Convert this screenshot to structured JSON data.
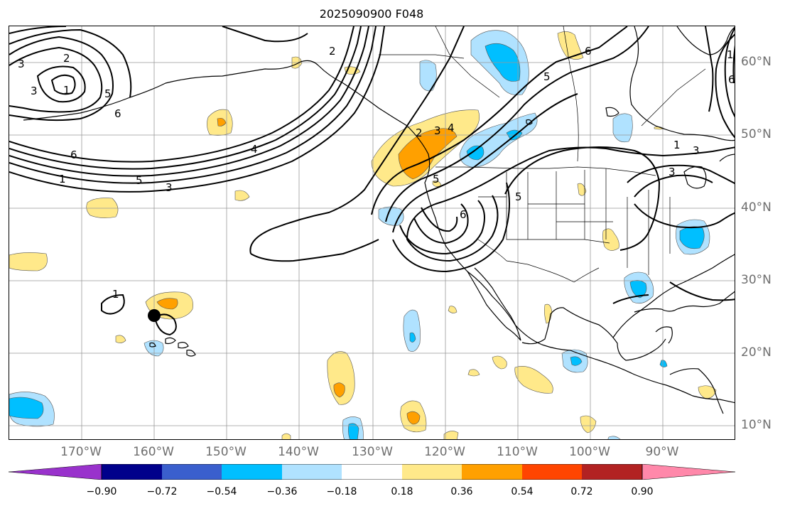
{
  "title": "2025090900 F048",
  "lon_labels": [
    "170°W",
    "160°W",
    "150°W",
    "140°W",
    "130°W",
    "120°W",
    "110°W",
    "100°W",
    "90°W"
  ],
  "lat_labels": [
    "60°N",
    "50°N",
    "40°N",
    "30°N",
    "20°N",
    "10°N"
  ],
  "colorbar": {
    "colors": [
      "#9932cc",
      "#00008b",
      "#3a5fcd",
      "#00bfff",
      "#b0e2ff",
      "#ffffff",
      "#ffe98a",
      "#ffa000",
      "#ff4500",
      "#b22222",
      "#ff88aa"
    ],
    "tick_labels": [
      "−0.90",
      "−0.72",
      "−0.54",
      "−0.36",
      "−0.18",
      "0.18",
      "0.36",
      "0.54",
      "0.72",
      "0.90"
    ]
  },
  "contour_labels": [
    "2",
    "3",
    "1",
    "5",
    "6",
    "6",
    "1",
    "5",
    "3",
    "4",
    "2",
    "2",
    "5",
    "3",
    "4",
    "5",
    "6",
    "5",
    "6",
    "1",
    "3",
    "6",
    "3",
    "1",
    "3",
    "1"
  ],
  "colors": {
    "coast": "#000000",
    "grid": "#999999",
    "contour": "#000000"
  }
}
